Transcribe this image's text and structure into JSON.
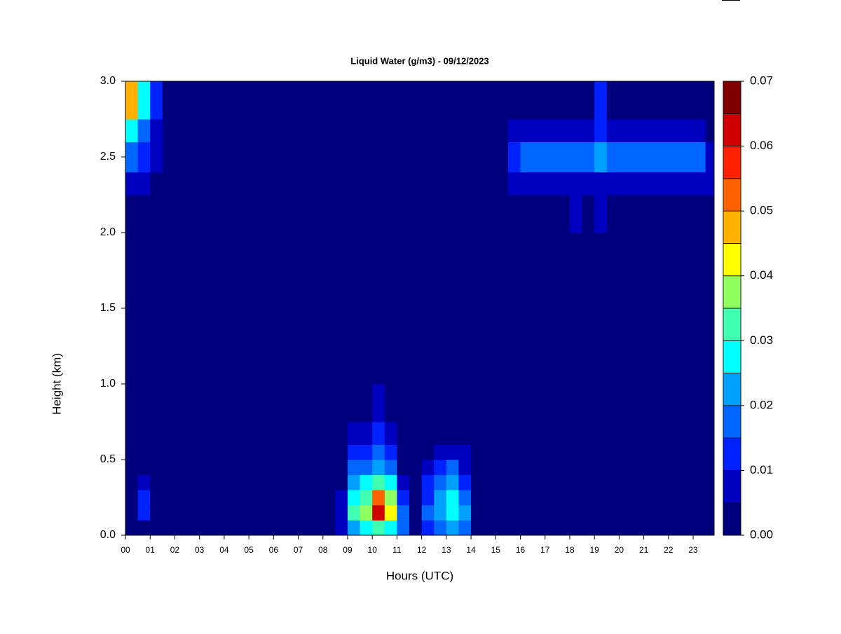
{
  "chart_data": {
    "type": "heatmap",
    "title": "Liquid Water (g/m3) - 09/12/2023",
    "x_label": "Hours (UTC)",
    "y_label": "Height (km)",
    "xlim": [
      0,
      23.85
    ],
    "ylim": [
      0,
      3
    ],
    "xticks": [
      {
        "value": 0,
        "label": "00"
      },
      {
        "value": 1,
        "label": "01"
      },
      {
        "value": 2,
        "label": "02"
      },
      {
        "value": 3,
        "label": "03"
      },
      {
        "value": 4,
        "label": "04"
      },
      {
        "value": 5,
        "label": "05"
      },
      {
        "value": 6,
        "label": "06"
      },
      {
        "value": 7,
        "label": "07"
      },
      {
        "value": 8,
        "label": "08"
      },
      {
        "value": 9,
        "label": "09"
      },
      {
        "value": 10,
        "label": "10"
      },
      {
        "value": 11,
        "label": "11"
      },
      {
        "value": 12,
        "label": "12"
      },
      {
        "value": 13,
        "label": "13"
      },
      {
        "value": 14,
        "label": "14"
      },
      {
        "value": 15,
        "label": "15"
      },
      {
        "value": 16,
        "label": "16"
      },
      {
        "value": 17,
        "label": "17"
      },
      {
        "value": 18,
        "label": "18"
      },
      {
        "value": 19,
        "label": "19"
      },
      {
        "value": 20,
        "label": "20"
      },
      {
        "value": 21,
        "label": "21"
      },
      {
        "value": 22,
        "label": "22"
      },
      {
        "value": 23,
        "label": "23"
      }
    ],
    "yticks": [
      {
        "value": 0,
        "label": "0.0"
      },
      0.5,
      {
        "value": 1,
        "label": "1.0"
      },
      1.5,
      {
        "value": 2,
        "label": "2.0"
      },
      2.5,
      {
        "value": 3,
        "label": "3.0"
      }
    ],
    "x_edges": [
      0,
      0.5,
      1,
      1.5,
      2,
      2.5,
      3,
      3.5,
      4,
      4.5,
      5,
      5.5,
      6,
      6.5,
      7,
      7.5,
      8,
      8.5,
      9,
      9.5,
      10,
      10.5,
      11,
      11.5,
      12,
      12.5,
      13,
      13.5,
      14,
      14.5,
      15,
      15.5,
      16,
      16.5,
      17,
      17.5,
      18,
      18.5,
      19,
      19.5,
      20,
      20.5,
      21,
      21.5,
      22,
      22.5,
      23,
      23.5,
      24
    ],
    "y_edges": [
      0,
      0.1,
      0.2,
      0.3,
      0.4,
      0.5,
      0.6,
      0.75,
      1,
      2,
      2.25,
      2.4,
      2.6,
      2.75,
      3
    ],
    "z": [
      [
        0,
        0,
        0,
        0,
        0,
        0,
        0,
        0,
        0,
        0,
        0,
        0,
        0,
        0,
        0,
        0,
        0,
        0.008,
        0.02,
        0.025,
        0.03,
        0.025,
        0.015,
        0,
        0.012,
        0.018,
        0.022,
        0.015,
        0,
        0,
        0,
        0,
        0,
        0,
        0,
        0,
        0,
        0,
        0,
        0,
        0,
        0,
        0,
        0,
        0,
        0,
        0,
        0
      ],
      [
        0,
        0.012,
        0,
        0,
        0,
        0,
        0,
        0,
        0,
        0,
        0,
        0,
        0,
        0,
        0,
        0,
        0,
        0.008,
        0.03,
        0.035,
        0.062,
        0.04,
        0.015,
        0,
        0.015,
        0.022,
        0.028,
        0.02,
        0,
        0,
        0,
        0,
        0,
        0,
        0,
        0,
        0,
        0,
        0,
        0,
        0,
        0,
        0,
        0,
        0,
        0,
        0,
        0
      ],
      [
        0,
        0.012,
        0,
        0,
        0,
        0,
        0,
        0,
        0,
        0,
        0,
        0,
        0,
        0,
        0,
        0,
        0,
        0.006,
        0.025,
        0.03,
        0.05,
        0.035,
        0.01,
        0,
        0.012,
        0.02,
        0.025,
        0.018,
        0,
        0,
        0,
        0,
        0,
        0,
        0,
        0,
        0,
        0,
        0,
        0,
        0,
        0,
        0,
        0,
        0,
        0,
        0,
        0
      ],
      [
        0,
        0.006,
        0,
        0,
        0,
        0,
        0,
        0,
        0,
        0,
        0,
        0,
        0,
        0,
        0,
        0,
        0,
        0,
        0.02,
        0.025,
        0.03,
        0.025,
        0.006,
        0,
        0.01,
        0.015,
        0.02,
        0.012,
        0,
        0,
        0,
        0,
        0,
        0,
        0,
        0,
        0,
        0,
        0,
        0,
        0,
        0,
        0,
        0,
        0,
        0,
        0,
        0
      ],
      [
        0,
        0,
        0,
        0,
        0,
        0,
        0,
        0,
        0,
        0,
        0,
        0,
        0,
        0,
        0,
        0,
        0,
        0,
        0.015,
        0.018,
        0.02,
        0.015,
        0,
        0,
        0.007,
        0.01,
        0.015,
        0.008,
        0,
        0,
        0,
        0,
        0,
        0,
        0,
        0,
        0,
        0,
        0,
        0,
        0,
        0,
        0,
        0,
        0,
        0,
        0,
        0
      ],
      [
        0,
        0,
        0,
        0,
        0,
        0,
        0,
        0,
        0,
        0,
        0,
        0,
        0,
        0,
        0,
        0,
        0,
        0,
        0.01,
        0.012,
        0.015,
        0.01,
        0,
        0,
        0,
        0.006,
        0.008,
        0.006,
        0,
        0,
        0,
        0,
        0,
        0,
        0,
        0,
        0,
        0,
        0,
        0,
        0,
        0,
        0,
        0,
        0,
        0,
        0,
        0
      ],
      [
        0,
        0,
        0,
        0,
        0,
        0,
        0,
        0,
        0,
        0,
        0,
        0,
        0,
        0,
        0,
        0,
        0,
        0,
        0.006,
        0.008,
        0.012,
        0.006,
        0,
        0,
        0,
        0,
        0,
        0,
        0,
        0,
        0,
        0,
        0,
        0,
        0,
        0,
        0,
        0,
        0,
        0,
        0,
        0,
        0,
        0,
        0,
        0,
        0,
        0
      ],
      [
        0,
        0,
        0,
        0,
        0,
        0,
        0,
        0,
        0,
        0,
        0,
        0,
        0,
        0,
        0,
        0,
        0,
        0,
        0,
        0,
        0.007,
        0,
        0,
        0,
        0,
        0,
        0,
        0,
        0,
        0,
        0,
        0,
        0,
        0,
        0,
        0,
        0,
        0,
        0,
        0,
        0,
        0,
        0,
        0,
        0,
        0,
        0,
        0
      ],
      [
        0,
        0,
        0,
        0,
        0,
        0,
        0,
        0,
        0,
        0,
        0,
        0,
        0,
        0,
        0,
        0,
        0,
        0,
        0,
        0,
        0,
        0,
        0,
        0,
        0,
        0,
        0,
        0,
        0,
        0,
        0,
        0,
        0,
        0,
        0,
        0,
        0,
        0,
        0,
        0,
        0,
        0,
        0,
        0,
        0,
        0,
        0,
        0
      ],
      [
        0,
        0,
        0,
        0,
        0,
        0,
        0,
        0,
        0,
        0,
        0,
        0,
        0,
        0,
        0,
        0,
        0,
        0,
        0,
        0,
        0,
        0,
        0,
        0,
        0,
        0,
        0,
        0,
        0,
        0,
        0,
        0,
        0,
        0,
        0,
        0,
        0.007,
        0,
        0.008,
        0,
        0,
        0,
        0,
        0,
        0,
        0,
        0,
        0
      ],
      [
        0.008,
        0.007,
        0,
        0,
        0,
        0,
        0,
        0,
        0,
        0,
        0,
        0,
        0,
        0,
        0,
        0,
        0,
        0,
        0,
        0,
        0,
        0,
        0,
        0,
        0,
        0,
        0,
        0,
        0,
        0,
        0,
        0.008,
        0.008,
        0.008,
        0.008,
        0.008,
        0.008,
        0.008,
        0.008,
        0.008,
        0.008,
        0.008,
        0.008,
        0.008,
        0.008,
        0.008,
        0.008,
        0.008
      ],
      [
        0.015,
        0.012,
        0.006,
        0,
        0,
        0,
        0,
        0,
        0,
        0,
        0,
        0,
        0,
        0,
        0,
        0,
        0,
        0,
        0,
        0,
        0,
        0,
        0,
        0,
        0,
        0,
        0,
        0,
        0,
        0,
        0,
        0.012,
        0.016,
        0.016,
        0.016,
        0.016,
        0.016,
        0.016,
        0.02,
        0.016,
        0.016,
        0.016,
        0.016,
        0.016,
        0.016,
        0.016,
        0.016,
        0.008
      ],
      [
        0.025,
        0.018,
        0.007,
        0,
        0,
        0,
        0,
        0,
        0,
        0,
        0,
        0,
        0,
        0,
        0,
        0,
        0,
        0,
        0,
        0,
        0,
        0,
        0,
        0,
        0,
        0,
        0,
        0,
        0,
        0,
        0,
        0.008,
        0.008,
        0.008,
        0.008,
        0.008,
        0.008,
        0.008,
        0.012,
        0.008,
        0.008,
        0.008,
        0.008,
        0.008,
        0.008,
        0.008,
        0.008,
        0
      ],
      [
        0.045,
        0.025,
        0.012,
        0,
        0,
        0,
        0,
        0,
        0,
        0,
        0,
        0,
        0,
        0,
        0,
        0,
        0,
        0,
        0,
        0,
        0,
        0,
        0,
        0,
        0,
        0,
        0,
        0,
        0,
        0,
        0,
        0,
        0,
        0,
        0,
        0,
        0,
        0,
        0.012,
        0,
        0,
        0,
        0,
        0,
        0,
        0,
        0,
        0
      ]
    ],
    "levels": [
      0,
      0.005,
      0.01,
      0.015,
      0.02,
      0.025,
      0.03,
      0.035,
      0.04,
      0.045,
      0.05,
      0.055,
      0.06,
      0.065,
      0.07
    ],
    "colors": [
      "#00007f",
      "#0000c0",
      "#0022ff",
      "#0066ff",
      "#00a0ff",
      "#00ffff",
      "#40ffb0",
      "#90ff60",
      "#ffff00",
      "#ffb000",
      "#ff6000",
      "#ff2000",
      "#d00000",
      "#800000"
    ],
    "zticks": [
      {
        "value": 0,
        "label": "0.00"
      },
      0.01,
      0.02,
      0.03,
      0.04,
      0.05,
      0.06,
      0.07
    ]
  }
}
